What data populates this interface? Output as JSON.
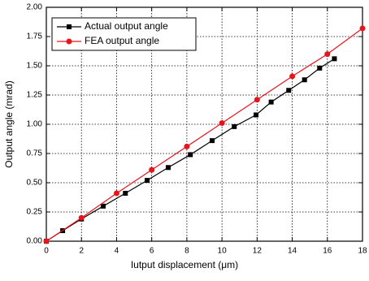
{
  "chart_data": {
    "type": "line",
    "xlabel": "Iutput displacement (μm)",
    "ylabel": "Output angle (mrad)",
    "xlim": [
      0,
      18
    ],
    "xticks": [
      0,
      2,
      4,
      6,
      8,
      10,
      12,
      14,
      16,
      18
    ],
    "ylim": [
      0,
      2
    ],
    "yticks": [
      {
        "value": 0,
        "label": "0.00"
      },
      {
        "value": 0.25,
        "label": "0.25"
      },
      {
        "value": 0.5,
        "label": "0.50"
      },
      {
        "value": 0.75,
        "label": "0.75"
      },
      {
        "value": 1,
        "label": "1.00"
      },
      {
        "value": 1.25,
        "label": "1.25"
      },
      {
        "value": 1.5,
        "label": "1.50"
      },
      {
        "value": 1.75,
        "label": "1.75"
      },
      {
        "value": 2,
        "label": "2.00"
      }
    ],
    "grid": true,
    "legend": "upper left",
    "series": [
      {
        "name": "Actual output angle",
        "color": "#000000",
        "marker": "square",
        "x": [
          0,
          0.93,
          2.0,
          3.24,
          4.5,
          5.74,
          6.94,
          8.2,
          9.44,
          10.7,
          11.94,
          12.8,
          13.8,
          14.7,
          15.56,
          16.4
        ],
        "values": [
          0,
          0.09,
          0.19,
          0.3,
          0.41,
          0.52,
          0.63,
          0.74,
          0.86,
          0.98,
          1.08,
          1.19,
          1.29,
          1.38,
          1.48,
          1.56
        ]
      },
      {
        "name": "FEA output angle",
        "color": "#e8141c",
        "marker": "circle",
        "x": [
          0,
          2,
          4,
          6,
          8,
          10,
          12,
          14,
          16,
          18
        ],
        "values": [
          0,
          0.2,
          0.41,
          0.61,
          0.81,
          1.01,
          1.21,
          1.41,
          1.6,
          1.82
        ]
      }
    ]
  }
}
